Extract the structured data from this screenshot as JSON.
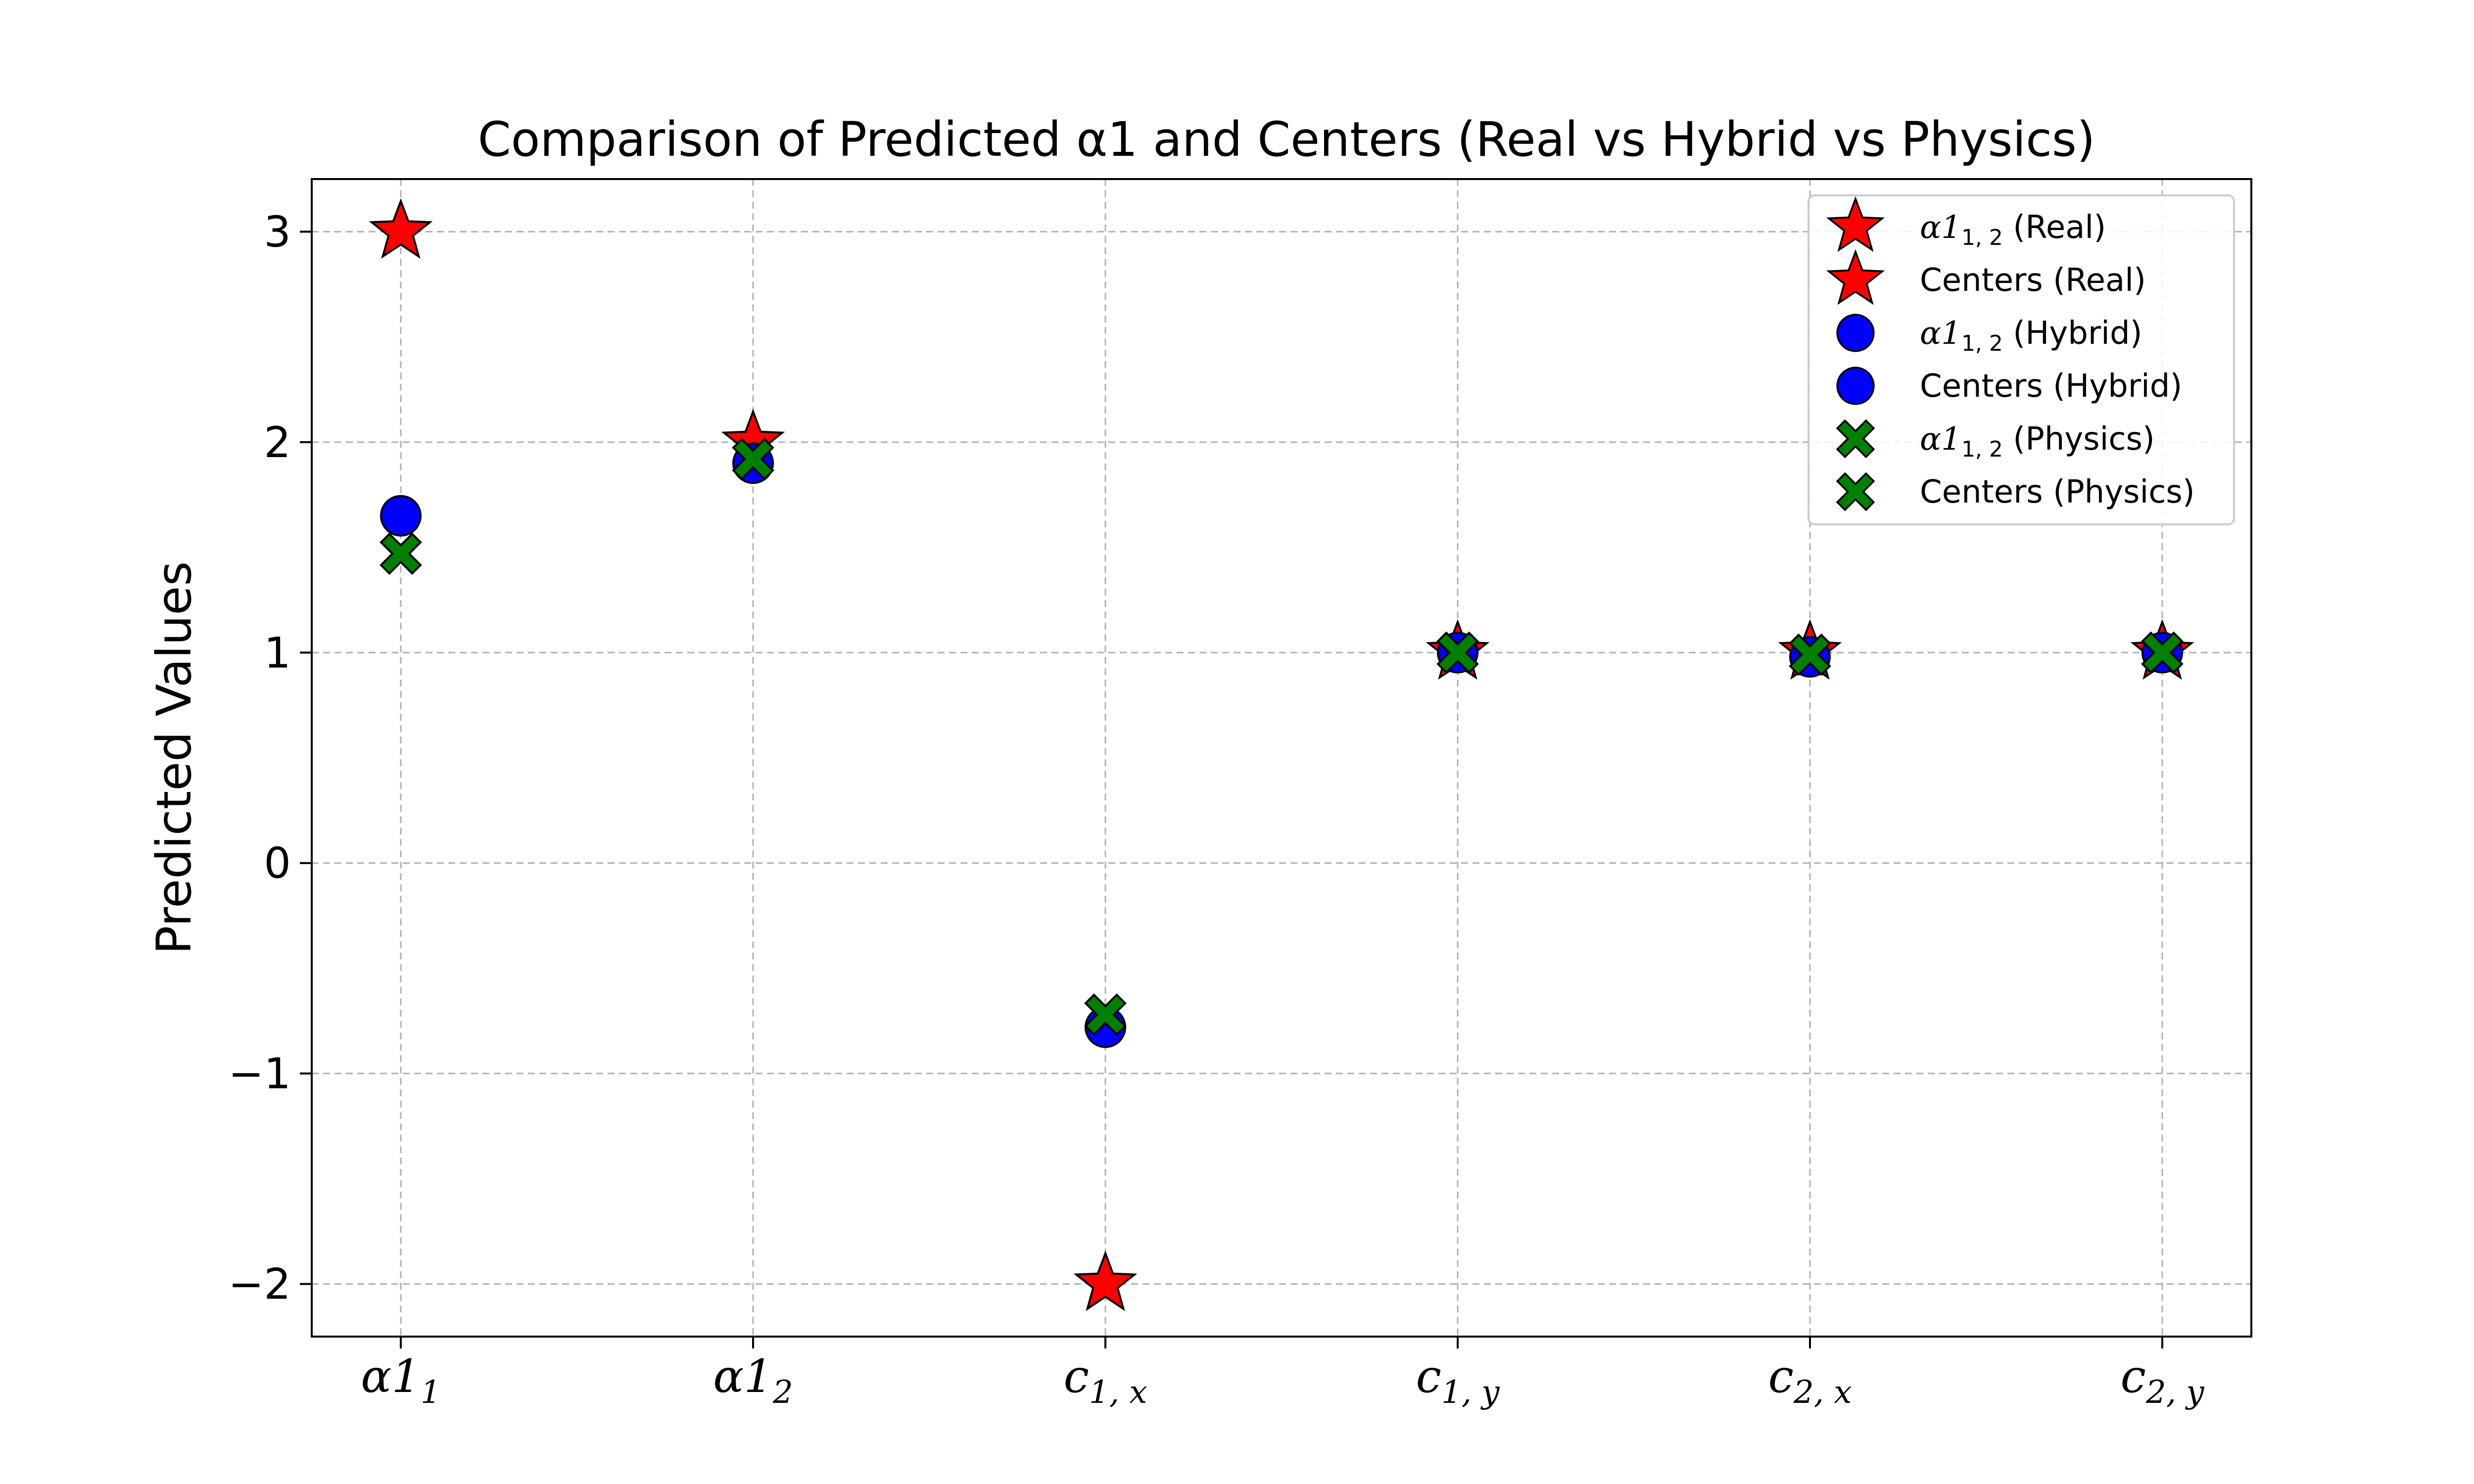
{
  "chart_data": {
    "type": "scatter",
    "title": "Comparison of Predicted α1 and Centers (Real vs Hybrid vs Physics)",
    "xlabel": "",
    "ylabel": "Predicted Values",
    "categories": [
      {
        "base": "α1",
        "sub": "1"
      },
      {
        "base": "α1",
        "sub": "2"
      },
      {
        "base": "c",
        "sub": "1, x"
      },
      {
        "base": "c",
        "sub": "1, y"
      },
      {
        "base": "c",
        "sub": "2, x"
      },
      {
        "base": "c",
        "sub": "2, y"
      }
    ],
    "ylim": [
      -2.25,
      3.25
    ],
    "yticks": [
      3,
      2,
      1,
      0,
      -1,
      -2
    ],
    "ytick_labels": [
      "3",
      "2",
      "1",
      "0",
      "−1",
      "−2"
    ],
    "grid": true,
    "legend_position": "top-right",
    "series": [
      {
        "name": "α1₁,₂ (Real)",
        "group": "Real",
        "marker": "star",
        "color": "#ff0000",
        "x_index": [
          0,
          1
        ],
        "values": [
          3.0,
          2.0
        ]
      },
      {
        "name": "Centers (Real)",
        "group": "Real",
        "marker": "star",
        "color": "#ff0000",
        "x_index": [
          2,
          3,
          4,
          5
        ],
        "values": [
          -2.0,
          1.0,
          1.0,
          1.0
        ]
      },
      {
        "name": "α1₁,₂ (Hybrid)",
        "group": "Hybrid",
        "marker": "circle",
        "color": "#0000ff",
        "x_index": [
          0,
          1
        ],
        "values": [
          1.65,
          1.9
        ]
      },
      {
        "name": "Centers (Hybrid)",
        "group": "Hybrid",
        "marker": "circle",
        "color": "#0000ff",
        "x_index": [
          2,
          3,
          4,
          5
        ],
        "values": [
          -0.78,
          1.0,
          0.98,
          1.0
        ]
      },
      {
        "name": "α1₁,₂ (Physics)",
        "group": "Physics",
        "marker": "x",
        "color": "#008000",
        "x_index": [
          0,
          1
        ],
        "values": [
          1.47,
          1.92
        ]
      },
      {
        "name": "Centers (Physics)",
        "group": "Physics",
        "marker": "x",
        "color": "#008000",
        "x_index": [
          2,
          3,
          4,
          5
        ],
        "values": [
          -0.72,
          1.0,
          0.99,
          1.0
        ]
      }
    ]
  },
  "legend": {
    "entries": [
      {
        "marker": "star",
        "color": "#ff0000",
        "sym": "α1",
        "sub": "1, 2",
        "suffix": " (Real)",
        "text": ""
      },
      {
        "marker": "star",
        "color": "#ff0000",
        "sym": "",
        "sub": "",
        "suffix": "",
        "text": "Centers (Real)"
      },
      {
        "marker": "circle",
        "color": "#0000ff",
        "sym": "α1",
        "sub": "1, 2",
        "suffix": " (Hybrid)",
        "text": ""
      },
      {
        "marker": "circle",
        "color": "#0000ff",
        "sym": "",
        "sub": "",
        "suffix": "",
        "text": "Centers (Hybrid)"
      },
      {
        "marker": "x",
        "color": "#008000",
        "sym": "α1",
        "sub": "1, 2",
        "suffix": " (Physics)",
        "text": ""
      },
      {
        "marker": "x",
        "color": "#008000",
        "sym": "",
        "sub": "",
        "suffix": "",
        "text": "Centers (Physics)"
      }
    ]
  }
}
